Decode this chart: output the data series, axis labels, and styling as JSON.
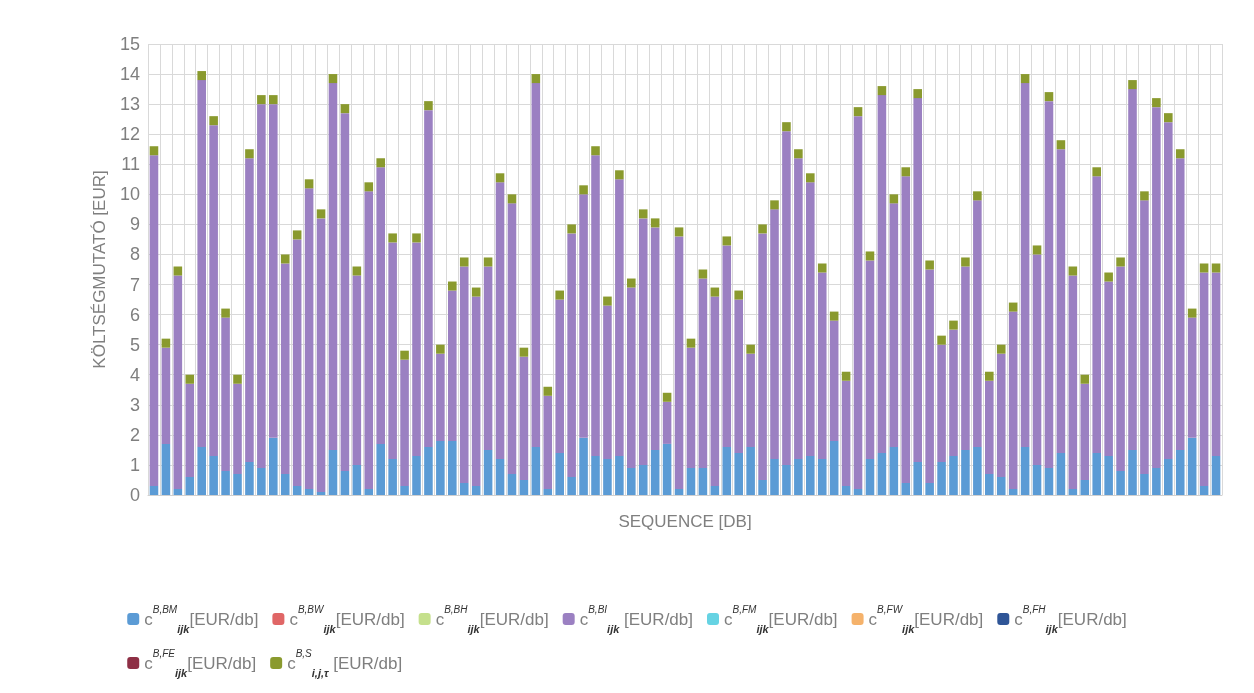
{
  "chart_data": {
    "type": "bar",
    "stacked": true,
    "xlabel": "SEQUENCE [DB]",
    "ylabel": "KÖLTSÉGMUTATÓ [EUR]",
    "categories": [
      null,
      null,
      null,
      null,
      null,
      null,
      null,
      null,
      null,
      null,
      null,
      null,
      null,
      null,
      null,
      null,
      null,
      null,
      null,
      null,
      null,
      null,
      null,
      null,
      null,
      null,
      null,
      null,
      null,
      null,
      null,
      null,
      null,
      null,
      null,
      null,
      null,
      null,
      null,
      null,
      null,
      null,
      null,
      null,
      null,
      null,
      null,
      null,
      null,
      null,
      null,
      null,
      null,
      null,
      null,
      null,
      null,
      null,
      null,
      null,
      null,
      null,
      null,
      null,
      null,
      null,
      null,
      null,
      null,
      null,
      null,
      null,
      null,
      null,
      null,
      null,
      null,
      null,
      null,
      null,
      null,
      null,
      null,
      null,
      null,
      null,
      null,
      null,
      null,
      null
    ],
    "ylim": [
      0,
      15
    ],
    "yticks": [
      0,
      1,
      2,
      3,
      4,
      5,
      6,
      7,
      8,
      9,
      10,
      11,
      12,
      13,
      14,
      15
    ],
    "grid": true,
    "legend": "bottom",
    "series": [
      {
        "name": "c$^{B,BM}$$_{ijk}$[EUR/db]",
        "color": "#5b9bd5",
        "values": [
          0.3,
          1.7,
          0.2,
          0.6,
          1.6,
          1.3,
          0.8,
          0.7,
          1.1,
          0.9,
          1.9,
          0.7,
          0.3,
          0.2,
          0.1,
          1.5,
          0.8,
          1.0,
          0.2,
          1.7,
          1.2,
          0.3,
          1.3,
          1.6,
          1.8,
          1.8,
          0.4,
          0.3,
          1.5,
          1.2,
          0.7,
          0.5,
          1.6,
          0.2,
          1.4,
          0.6,
          1.9,
          1.3,
          1.2,
          1.3,
          0.9,
          1.0,
          1.5,
          1.7,
          0.2,
          0.9,
          0.9,
          0.3,
          1.6,
          1.4,
          1.6,
          0.5,
          1.2,
          1.0,
          1.2,
          1.3,
          1.2,
          1.8,
          0.3,
          0.2,
          1.2,
          1.4,
          1.6,
          0.4,
          1.1,
          0.4,
          1.1,
          1.3,
          1.5,
          1.6,
          0.7,
          0.6,
          0.2,
          1.6,
          1.0,
          0.9,
          1.4,
          0.2,
          0.5,
          1.4,
          1.3,
          0.8,
          1.5,
          0.7,
          0.9,
          1.2,
          1.5,
          1.9,
          0.3,
          1.3
        ]
      },
      {
        "name": "c$^{B,BW}$$_{ijk}$[EUR/db]",
        "color": "#e06666",
        "values": [
          0,
          0,
          0,
          0,
          0,
          0,
          0,
          0,
          0,
          0,
          0,
          0,
          0,
          0,
          0,
          0,
          0,
          0,
          0,
          0,
          0,
          0,
          0,
          0,
          0,
          0,
          0,
          0,
          0,
          0,
          0,
          0,
          0,
          0,
          0,
          0,
          0,
          0,
          0,
          0,
          0,
          0,
          0,
          0,
          0,
          0,
          0,
          0,
          0,
          0,
          0,
          0,
          0,
          0,
          0,
          0,
          0,
          0,
          0,
          0,
          0,
          0,
          0,
          0,
          0,
          0,
          0,
          0,
          0,
          0,
          0,
          0,
          0,
          0,
          0,
          0,
          0,
          0,
          0,
          0,
          0,
          0,
          0,
          0,
          0,
          0,
          0,
          0,
          0,
          0
        ]
      },
      {
        "name": "c$^{B,BH}$$_{ijk}$[EUR/db]",
        "color": "#c5e08c",
        "values": [
          0,
          0,
          0,
          0,
          0,
          0,
          0,
          0,
          0,
          0,
          0,
          0,
          0,
          0,
          0,
          0,
          0,
          0,
          0,
          0,
          0,
          0,
          0,
          0,
          0,
          0,
          0,
          0,
          0,
          0,
          0,
          0,
          0,
          0,
          0,
          0,
          0,
          0,
          0,
          0,
          0,
          0,
          0,
          0,
          0,
          0,
          0,
          0,
          0,
          0,
          0,
          0,
          0,
          0,
          0,
          0,
          0,
          0,
          0,
          0,
          0,
          0,
          0,
          0,
          0,
          0,
          0,
          0,
          0,
          0,
          0,
          0,
          0,
          0,
          0,
          0,
          0,
          0,
          0,
          0,
          0,
          0,
          0,
          0,
          0,
          0,
          0,
          0,
          0,
          0
        ]
      },
      {
        "name": "c$^{B,BI}$$_{ijk}$ [EUR/db]",
        "color": "#9b80c2",
        "values": [
          11.0,
          3.2,
          7.1,
          3.1,
          12.2,
          11.0,
          5.1,
          3.0,
          10.1,
          12.1,
          11.1,
          7.0,
          8.2,
          10.0,
          9.1,
          12.2,
          11.9,
          6.3,
          9.9,
          9.2,
          7.2,
          4.2,
          7.1,
          11.2,
          2.9,
          5.0,
          7.2,
          6.3,
          6.1,
          9.2,
          9.0,
          4.1,
          12.1,
          3.1,
          5.1,
          8.1,
          8.1,
          10.0,
          5.1,
          9.2,
          6.0,
          8.2,
          7.4,
          1.4,
          8.4,
          4.0,
          6.3,
          6.3,
          6.7,
          5.1,
          3.1,
          8.2,
          8.3,
          11.1,
          10.0,
          9.1,
          6.2,
          4.0,
          3.5,
          12.4,
          6.6,
          11.9,
          8.1,
          10.2,
          12.1,
          7.1,
          3.9,
          4.2,
          6.1,
          8.2,
          3.1,
          4.1,
          5.9,
          12.1,
          7.0,
          12.2,
          10.1,
          7.1,
          3.2,
          9.2,
          5.8,
          6.8,
          12.0,
          9.1,
          12.0,
          11.2,
          9.7,
          4.0,
          7.1,
          6.1
        ]
      },
      {
        "name": "c$^{B,FM}$$_{ijk}$[EUR/db]",
        "color": "#66d3e3",
        "values": [
          0,
          0,
          0,
          0,
          0,
          0,
          0,
          0,
          0,
          0,
          0,
          0,
          0,
          0,
          0,
          0,
          0,
          0,
          0,
          0,
          0,
          0,
          0,
          0,
          0,
          0,
          0,
          0,
          0,
          0,
          0,
          0,
          0,
          0,
          0,
          0,
          0,
          0,
          0,
          0,
          0,
          0,
          0,
          0,
          0,
          0,
          0,
          0,
          0,
          0,
          0,
          0,
          0,
          0,
          0,
          0,
          0,
          0,
          0,
          0,
          0,
          0,
          0,
          0,
          0,
          0,
          0,
          0,
          0,
          0,
          0,
          0,
          0,
          0,
          0,
          0,
          0,
          0,
          0,
          0,
          0,
          0,
          0,
          0,
          0,
          0,
          0,
          0,
          0,
          0
        ]
      },
      {
        "name": "c$^{B,FW}$$_{ijk}$[EUR/db]",
        "color": "#f5b26b",
        "values": [
          0,
          0,
          0,
          0,
          0,
          0,
          0,
          0,
          0,
          0,
          0,
          0,
          0,
          0,
          0,
          0,
          0,
          0,
          0,
          0,
          0,
          0,
          0,
          0,
          0,
          0,
          0,
          0,
          0,
          0,
          0,
          0,
          0,
          0,
          0,
          0,
          0,
          0,
          0,
          0,
          0,
          0,
          0,
          0,
          0,
          0,
          0,
          0,
          0,
          0,
          0,
          0,
          0,
          0,
          0,
          0,
          0,
          0,
          0,
          0,
          0,
          0,
          0,
          0,
          0,
          0,
          0,
          0,
          0,
          0,
          0,
          0,
          0,
          0,
          0,
          0,
          0,
          0,
          0,
          0,
          0,
          0,
          0,
          0,
          0,
          0,
          0,
          0,
          0,
          0
        ]
      },
      {
        "name": "c$^{B,FH}$$_{ijk}$[EUR/db]",
        "color": "#2f5597",
        "values": [
          0,
          0,
          0,
          0,
          0,
          0,
          0,
          0,
          0,
          0,
          0,
          0,
          0,
          0,
          0,
          0,
          0,
          0,
          0,
          0,
          0,
          0,
          0,
          0,
          0,
          0,
          0,
          0,
          0,
          0,
          0,
          0,
          0,
          0,
          0,
          0,
          0,
          0,
          0,
          0,
          0,
          0,
          0,
          0,
          0,
          0,
          0,
          0,
          0,
          0,
          0,
          0,
          0,
          0,
          0,
          0,
          0,
          0,
          0,
          0,
          0,
          0,
          0,
          0,
          0,
          0,
          0,
          0,
          0,
          0,
          0,
          0,
          0,
          0,
          0,
          0,
          0,
          0,
          0,
          0,
          0,
          0,
          0,
          0,
          0,
          0,
          0,
          0,
          0,
          0
        ]
      },
      {
        "name": "c$^{B,FE}$$_{ijk}$[EUR/db]",
        "color": "#8e2f45",
        "values": [
          0,
          0,
          0,
          0,
          0,
          0,
          0,
          0,
          0,
          0,
          0,
          0,
          0,
          0,
          0,
          0,
          0,
          0,
          0,
          0,
          0,
          0,
          0,
          0,
          0,
          0,
          0,
          0,
          0,
          0,
          0,
          0,
          0,
          0,
          0,
          0,
          0,
          0,
          0,
          0,
          0,
          0,
          0,
          0,
          0,
          0,
          0,
          0,
          0,
          0,
          0,
          0,
          0,
          0,
          0,
          0,
          0,
          0,
          0,
          0,
          0,
          0,
          0,
          0,
          0,
          0,
          0,
          0,
          0,
          0,
          0,
          0,
          0,
          0,
          0,
          0,
          0,
          0,
          0,
          0,
          0,
          0,
          0,
          0,
          0,
          0,
          0,
          0,
          0,
          0
        ]
      },
      {
        "name": "c$^{B,S}$$_{i,j,τ}$ [EUR/db]",
        "color": "#8a9a2e",
        "values": [
          0.3,
          0.3,
          0.3,
          0.3,
          0.3,
          0.3,
          0.3,
          0.3,
          0.3,
          0.3,
          0.3,
          0.3,
          0.3,
          0.3,
          0.3,
          0.3,
          0.3,
          0.3,
          0.3,
          0.3,
          0.3,
          0.3,
          0.3,
          0.3,
          0.3,
          0.3,
          0.3,
          0.3,
          0.3,
          0.3,
          0.3,
          0.3,
          0.3,
          0.3,
          0.3,
          0.3,
          0.3,
          0.3,
          0.3,
          0.3,
          0.3,
          0.3,
          0.3,
          0.3,
          0.3,
          0.3,
          0.3,
          0.3,
          0.3,
          0.3,
          0.3,
          0.3,
          0.3,
          0.3,
          0.3,
          0.3,
          0.3,
          0.3,
          0.3,
          0.3,
          0.3,
          0.3,
          0.3,
          0.3,
          0.3,
          0.3,
          0.3,
          0.3,
          0.3,
          0.3,
          0.3,
          0.3,
          0.3,
          0.3,
          0.3,
          0.3,
          0.3,
          0.3,
          0.3,
          0.3,
          0.3,
          0.3,
          0.3,
          0.3,
          0.3,
          0.3,
          0.3,
          0.3,
          0.3,
          0.3
        ]
      }
    ]
  }
}
